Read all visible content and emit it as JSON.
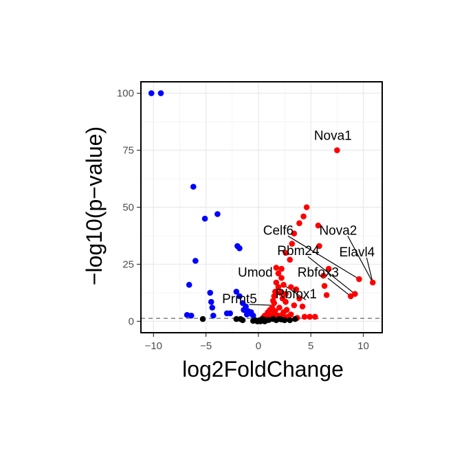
{
  "chart_data": {
    "type": "scatter",
    "title": "",
    "xlabel": "log2FoldChange",
    "ylabel": "−log10(p−value)",
    "xlim": [
      -11.2,
      11.8
    ],
    "ylim": [
      -5,
      105
    ],
    "x_ticks": [
      -10,
      -5,
      0,
      5,
      10
    ],
    "x_tick_labels": [
      "−10",
      "−5",
      "0",
      "5",
      "10"
    ],
    "y_ticks": [
      0,
      25,
      50,
      75,
      100
    ],
    "y_tick_labels": [
      "0",
      "25",
      "50",
      "75",
      "100"
    ],
    "grid": true,
    "legend": "none",
    "threshold_line": {
      "y": 1.3,
      "style": "dashed",
      "color": "#808080"
    },
    "series": [
      {
        "color": "#0000ff",
        "points": [
          [
            -10.2,
            100
          ],
          [
            -9.3,
            100
          ],
          [
            -6.2,
            59
          ],
          [
            -5.1,
            45
          ],
          [
            -3.9,
            47
          ],
          [
            -6.0,
            26.5
          ],
          [
            -2.0,
            33
          ],
          [
            -1.8,
            32
          ],
          [
            -6.6,
            16
          ],
          [
            -4.6,
            12.5
          ],
          [
            -2.1,
            13
          ],
          [
            -1.8,
            11
          ],
          [
            -4.5,
            8.5
          ],
          [
            -4.4,
            6
          ],
          [
            -1.5,
            8
          ],
          [
            -1.2,
            6.5
          ],
          [
            -1.0,
            4.5
          ],
          [
            -3.0,
            3.5
          ],
          [
            -4.3,
            2.5
          ],
          [
            -6.8,
            2.8
          ],
          [
            -6.4,
            2.5
          ],
          [
            -2.7,
            3.5
          ],
          [
            -1.4,
            5
          ],
          [
            -0.8,
            3.5
          ],
          [
            -0.5,
            2.5
          ],
          [
            -0.7,
            4
          ],
          [
            -1.1,
            3
          ]
        ]
      },
      {
        "color": "#ff0000",
        "points": [
          [
            7.5,
            75
          ],
          [
            4.6,
            50
          ],
          [
            4.3,
            46
          ],
          [
            3.9,
            43
          ],
          [
            5.7,
            42
          ],
          [
            3.4,
            38.5
          ],
          [
            3.2,
            34
          ],
          [
            5.8,
            33
          ],
          [
            2.6,
            30
          ],
          [
            3.0,
            27
          ],
          [
            6.7,
            23
          ],
          [
            2.2,
            23
          ],
          [
            1.9,
            21
          ],
          [
            6.2,
            20
          ],
          [
            9.6,
            18.5
          ],
          [
            10.9,
            17
          ],
          [
            1.7,
            17
          ],
          [
            2.4,
            16
          ],
          [
            1.9,
            15
          ],
          [
            3.1,
            15
          ],
          [
            6.3,
            15.5
          ],
          [
            3.6,
            14
          ],
          [
            1.6,
            13
          ],
          [
            2.1,
            12.5
          ],
          [
            6.5,
            11.5
          ],
          [
            9.2,
            12
          ],
          [
            8.8,
            11
          ],
          [
            1.5,
            11
          ],
          [
            2.3,
            10
          ],
          [
            3.9,
            10
          ],
          [
            1.4,
            9
          ],
          [
            2.6,
            8.5
          ],
          [
            1.5,
            8
          ],
          [
            3.4,
            7
          ],
          [
            4.2,
            6.5
          ],
          [
            2.0,
            6
          ],
          [
            1.3,
            6
          ],
          [
            2.7,
            5
          ],
          [
            1.1,
            5
          ],
          [
            1.6,
            4.5
          ],
          [
            2.4,
            4
          ],
          [
            0.9,
            4
          ],
          [
            1.5,
            3.5
          ],
          [
            3.1,
            3
          ],
          [
            0.8,
            3
          ],
          [
            1.9,
            2.5
          ],
          [
            0.6,
            2.5
          ],
          [
            1.3,
            2.5
          ],
          [
            4.4,
            2
          ],
          [
            2.8,
            2
          ],
          [
            4.9,
            2
          ],
          [
            5.4,
            2
          ],
          [
            0.5,
            1.8
          ],
          [
            1.1,
            1.6
          ],
          [
            2.1,
            1.8
          ],
          [
            3.7,
            1.5
          ],
          [
            1.7,
            1.7
          ],
          [
            2.5,
            1.5
          ],
          [
            0.7,
            1.5
          ],
          [
            1.3,
            1.6
          ],
          [
            0.4,
            1.4
          ],
          [
            2.3,
            3
          ],
          [
            1.7,
            23.5
          ],
          [
            2.2,
            19
          ],
          [
            2.6,
            12
          ]
        ]
      },
      {
        "color": "#000000",
        "points": [
          [
            -5.3,
            1
          ],
          [
            -2.1,
            1
          ],
          [
            -1.7,
            1
          ],
          [
            -1.5,
            0.5
          ],
          [
            -0.3,
            0.5
          ],
          [
            0.1,
            0.5
          ],
          [
            0.3,
            0.5
          ],
          [
            0.5,
            0.8
          ],
          [
            0.8,
            0.5
          ],
          [
            1.4,
            1
          ],
          [
            1.7,
            0.5
          ],
          [
            2.0,
            1
          ],
          [
            2.5,
            0.5
          ],
          [
            3.5,
            1
          ],
          [
            -0.1,
            0
          ],
          [
            0.2,
            0
          ],
          [
            0.6,
            0
          ],
          [
            1.0,
            0.6
          ],
          [
            2.2,
            0.8
          ],
          [
            -0.5,
            0.2
          ],
          [
            0.4,
            1
          ],
          [
            3.0,
            0.5
          ]
        ]
      }
    ],
    "annotations": [
      {
        "text": "Nova1",
        "x": 7.1,
        "y": 79.5,
        "anchor": "middle"
      },
      {
        "text": "Celf6",
        "x": 1.9,
        "y": 38,
        "anchor": "middle",
        "line_to": [
          9.6,
          18.5
        ]
      },
      {
        "text": "Nova2",
        "x": 7.6,
        "y": 38,
        "anchor": "middle",
        "line_to": [
          10.9,
          17
        ]
      },
      {
        "text": "Rbm24",
        "x": 3.8,
        "y": 29,
        "anchor": "middle",
        "line_to": [
          9.2,
          12
        ]
      },
      {
        "text": "Elavl4",
        "x": 9.4,
        "y": 28.5,
        "anchor": "middle",
        "line_to": [
          10.9,
          17
        ]
      },
      {
        "text": "Rbfox3",
        "x": 5.7,
        "y": 19.5,
        "anchor": "middle",
        "line_to": [
          8.8,
          11
        ]
      },
      {
        "text": "Umod",
        "x": -0.3,
        "y": 19.5,
        "anchor": "middle"
      },
      {
        "text": "Rbfox1",
        "x": 3.6,
        "y": 10,
        "anchor": "middle",
        "line_to": [
          2.4,
          16
        ]
      },
      {
        "text": "Prmt5",
        "x": -1.8,
        "y": 8,
        "anchor": "middle",
        "line_to": [
          1.5,
          7
        ]
      }
    ]
  }
}
